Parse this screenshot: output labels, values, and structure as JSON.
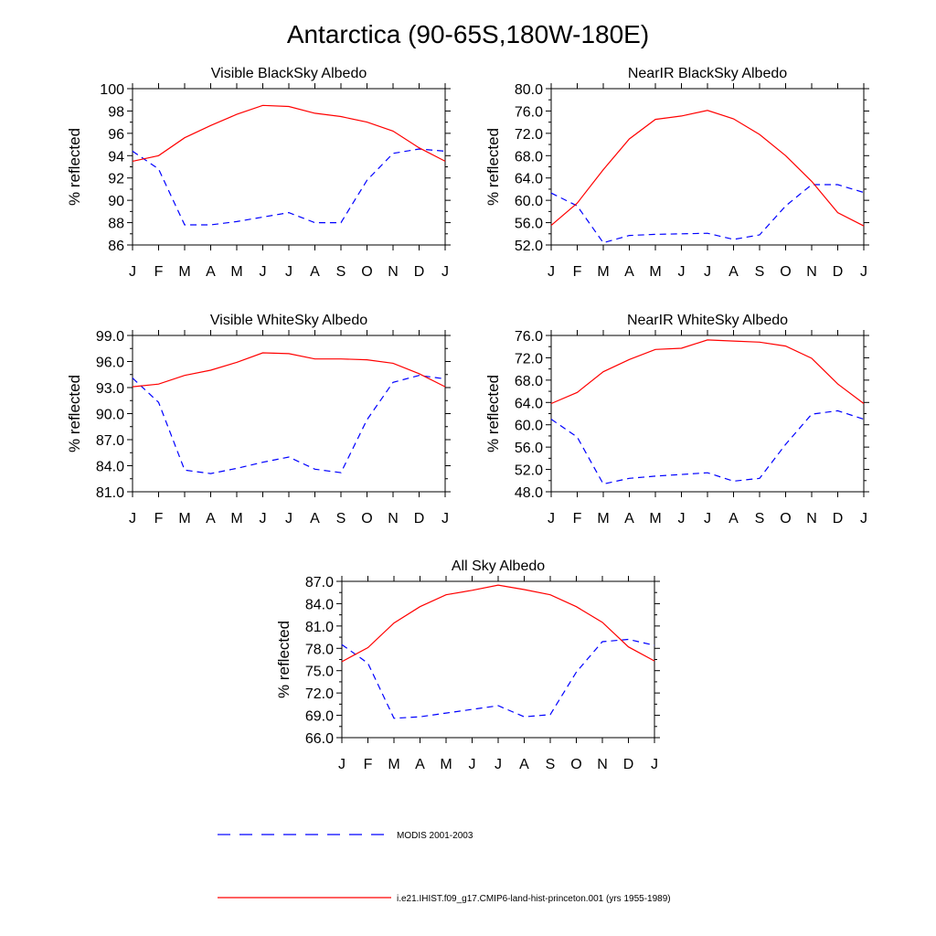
{
  "figure": {
    "title": "Antarctica (90-65S,180W-180E)",
    "legend": {
      "position": "bottom",
      "entries": [
        {
          "label": "MODIS 2001-2003",
          "color": "#0000ff",
          "style": "dashed"
        },
        {
          "label": "i.e21.IHIST.f09_g17.CMIP6-land-hist-princeton.001 (yrs 1955-1989)",
          "color": "#ff0000",
          "style": "solid"
        }
      ]
    }
  },
  "chart_data": [
    {
      "type": "line",
      "title": "Visible BlackSky Albedo",
      "ylabel": "% reflected",
      "categories": [
        "J",
        "F",
        "M",
        "A",
        "M",
        "J",
        "J",
        "A",
        "S",
        "O",
        "N",
        "D",
        "J"
      ],
      "ylim": [
        86,
        100
      ],
      "yticks": [
        "86",
        "88",
        "90",
        "92",
        "94",
        "96",
        "98",
        "100"
      ],
      "grid": false,
      "series": [
        {
          "name": "MODIS 2001-2003",
          "color": "#0000ff",
          "style": "dashed",
          "values": [
            94.4,
            92.8,
            87.8,
            87.8,
            88.1,
            88.5,
            88.9,
            88.0,
            88.0,
            91.8,
            94.2,
            94.6,
            94.4
          ]
        },
        {
          "name": "i.e21.IHIST.f09_g17.CMIP6-land-hist-princeton.001 (yrs 1955-1989)",
          "color": "#ff0000",
          "style": "solid",
          "values": [
            93.5,
            94.0,
            95.6,
            96.7,
            97.7,
            98.5,
            98.4,
            97.8,
            97.5,
            97.0,
            96.2,
            94.7,
            93.5
          ]
        }
      ]
    },
    {
      "type": "line",
      "title": "NearIR BlackSky Albedo",
      "ylabel": "% reflected",
      "categories": [
        "J",
        "F",
        "M",
        "A",
        "M",
        "J",
        "J",
        "A",
        "S",
        "O",
        "N",
        "D",
        "J"
      ],
      "ylim": [
        52,
        80
      ],
      "yticks": [
        "52.0",
        "56.0",
        "60.0",
        "64.0",
        "68.0",
        "72.0",
        "76.0",
        "80.0"
      ],
      "grid": false,
      "series": [
        {
          "name": "MODIS 2001-2003",
          "color": "#0000ff",
          "style": "dashed",
          "values": [
            61.3,
            59.0,
            52.4,
            53.7,
            53.9,
            54.0,
            54.1,
            53.0,
            53.8,
            59.0,
            62.8,
            62.8,
            61.4
          ]
        },
        {
          "name": "i.e21.IHIST.f09_g17.CMIP6-land-hist-princeton.001 (yrs 1955-1989)",
          "color": "#ff0000",
          "style": "solid",
          "values": [
            55.5,
            59.5,
            65.5,
            71.0,
            74.5,
            75.1,
            76.1,
            74.6,
            71.8,
            68.0,
            63.4,
            57.8,
            55.4
          ]
        }
      ]
    },
    {
      "type": "line",
      "title": "Visible WhiteSky Albedo",
      "ylabel": "% reflected",
      "categories": [
        "J",
        "F",
        "M",
        "A",
        "M",
        "J",
        "J",
        "A",
        "S",
        "O",
        "N",
        "D",
        "J"
      ],
      "ylim": [
        81,
        99
      ],
      "yticks": [
        "81.0",
        "84.0",
        "87.0",
        "90.0",
        "93.0",
        "96.0",
        "99.0"
      ],
      "grid": false,
      "series": [
        {
          "name": "MODIS 2001-2003",
          "color": "#0000ff",
          "style": "dashed",
          "values": [
            94.1,
            91.3,
            83.5,
            83.1,
            83.7,
            84.4,
            85.0,
            83.6,
            83.2,
            89.3,
            93.6,
            94.4,
            94.0
          ]
        },
        {
          "name": "i.e21.IHIST.f09_g17.CMIP6-land-hist-princeton.001 (yrs 1955-1989)",
          "color": "#ff0000",
          "style": "solid",
          "values": [
            93.1,
            93.4,
            94.4,
            95.0,
            95.9,
            97.0,
            96.9,
            96.3,
            96.3,
            96.2,
            95.8,
            94.6,
            93.1
          ]
        }
      ]
    },
    {
      "type": "line",
      "title": "NearIR WhiteSky Albedo",
      "ylabel": "% reflected",
      "categories": [
        "J",
        "F",
        "M",
        "A",
        "M",
        "J",
        "J",
        "A",
        "S",
        "O",
        "N",
        "D",
        "J"
      ],
      "ylim": [
        48,
        76
      ],
      "yticks": [
        "48.0",
        "52.0",
        "56.0",
        "60.0",
        "64.0",
        "68.0",
        "72.0",
        "76.0"
      ],
      "grid": false,
      "series": [
        {
          "name": "MODIS 2001-2003",
          "color": "#0000ff",
          "style": "dashed",
          "values": [
            61.0,
            57.8,
            49.4,
            50.4,
            50.8,
            51.1,
            51.4,
            49.9,
            50.4,
            56.5,
            61.9,
            62.5,
            61.0
          ]
        },
        {
          "name": "i.e21.IHIST.f09_g17.CMIP6-land-hist-princeton.001 (yrs 1955-1989)",
          "color": "#ff0000",
          "style": "solid",
          "values": [
            63.8,
            65.8,
            69.5,
            71.7,
            73.5,
            73.7,
            75.2,
            75.0,
            74.8,
            74.1,
            71.9,
            67.3,
            63.8
          ]
        }
      ]
    },
    {
      "type": "line",
      "title": "All Sky Albedo",
      "ylabel": "% reflected",
      "categories": [
        "J",
        "F",
        "M",
        "A",
        "M",
        "J",
        "J",
        "A",
        "S",
        "O",
        "N",
        "D",
        "J"
      ],
      "ylim": [
        66,
        87
      ],
      "yticks": [
        "66.0",
        "69.0",
        "72.0",
        "75.0",
        "78.0",
        "81.0",
        "84.0",
        "87.0"
      ],
      "grid": false,
      "series": [
        {
          "name": "MODIS 2001-2003",
          "color": "#0000ff",
          "style": "dashed",
          "values": [
            78.5,
            76.0,
            68.6,
            68.8,
            69.3,
            69.8,
            70.3,
            68.8,
            69.1,
            74.8,
            78.9,
            79.2,
            78.4
          ]
        },
        {
          "name": "i.e21.IHIST.f09_g17.CMIP6-land-hist-princeton.001 (yrs 1955-1989)",
          "color": "#ff0000",
          "style": "solid",
          "values": [
            76.2,
            78.1,
            81.4,
            83.6,
            85.2,
            85.8,
            86.5,
            85.9,
            85.2,
            83.6,
            81.5,
            78.2,
            76.3
          ]
        }
      ]
    }
  ]
}
